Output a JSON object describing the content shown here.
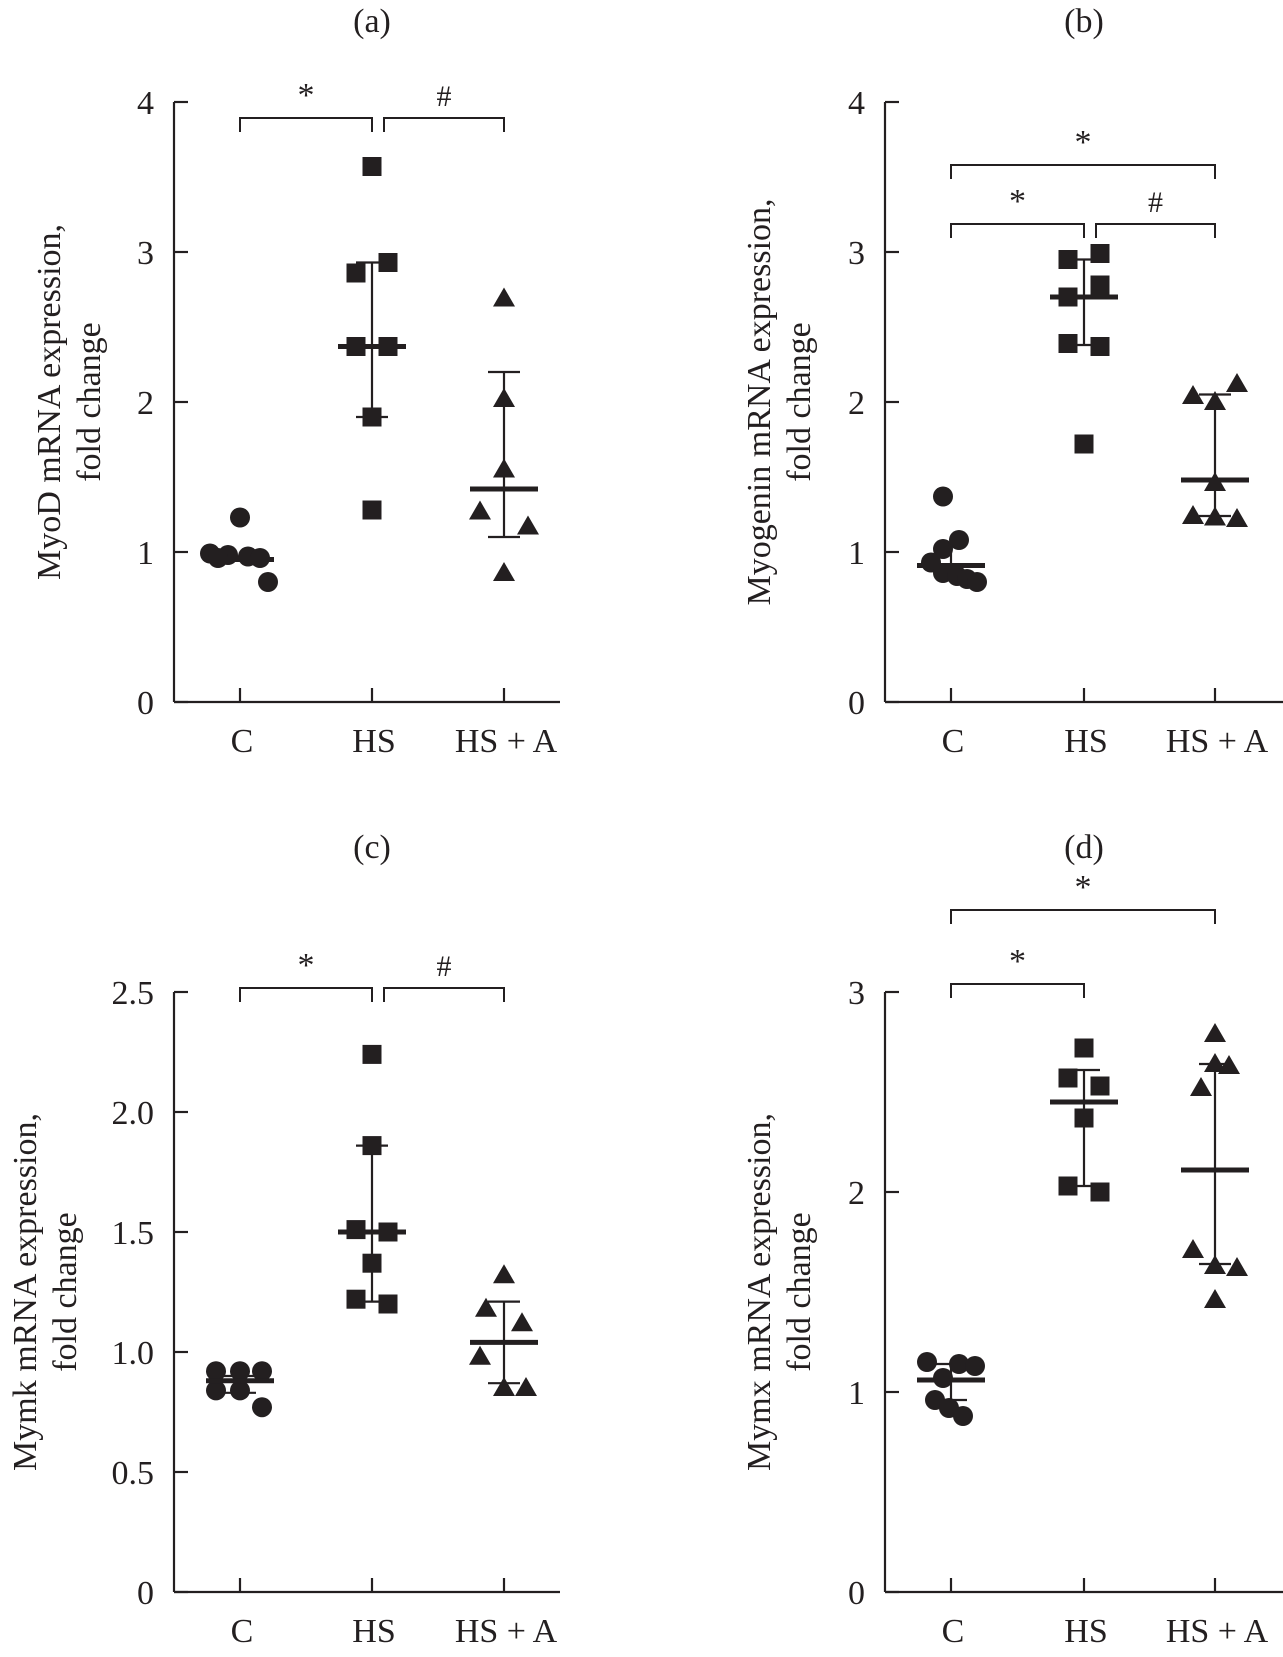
{
  "chart_data": [
    {
      "type": "scatter",
      "panel": "(a)",
      "title": "(a)",
      "xlabel": "",
      "ylabel_line1": "MyoD mRNA expression,",
      "ylabel_line2": "fold change",
      "categories": [
        "C",
        "HS",
        "HS + A"
      ],
      "ylim": [
        0,
        4
      ],
      "yticks": [
        0,
        1,
        2,
        3,
        4
      ],
      "ytick_labels": [
        "0",
        "1",
        "2",
        "3",
        "4"
      ],
      "grid": false,
      "series": [
        {
          "name": "C",
          "marker": "circle",
          "values": [
            1.23,
            0.99,
            0.98,
            0.97,
            0.96,
            0.96,
            0.8
          ],
          "mean": 0.95,
          "whisker": [
            0.97,
            0.95
          ]
        },
        {
          "name": "HS",
          "marker": "square",
          "values": [
            3.57,
            2.93,
            2.86,
            2.37,
            2.37,
            1.9,
            1.28
          ],
          "mean": 2.37,
          "whisker": [
            2.93,
            1.9
          ]
        },
        {
          "name": "HS + A",
          "marker": "triangle",
          "values": [
            2.69,
            2.02,
            1.55,
            1.27,
            1.17,
            0.86
          ],
          "mean": 1.42,
          "whisker": [
            2.2,
            1.1
          ]
        }
      ],
      "significance": [
        {
          "from": "C",
          "to": "HS",
          "label": "*",
          "level": 1
        },
        {
          "from": "HS",
          "to": "HS + A",
          "label": "#",
          "level": 1
        }
      ]
    },
    {
      "type": "scatter",
      "panel": "(b)",
      "title": "(b)",
      "xlabel": "",
      "ylabel_line1": "Myogenin mRNA expression,",
      "ylabel_line2": "fold change",
      "categories": [
        "C",
        "HS",
        "HS + A"
      ],
      "ylim": [
        0,
        4
      ],
      "yticks": [
        0,
        1,
        2,
        3,
        4
      ],
      "ytick_labels": [
        "0",
        "1",
        "2",
        "3",
        "4"
      ],
      "grid": false,
      "series": [
        {
          "name": "C",
          "marker": "circle",
          "values": [
            1.37,
            1.08,
            1.02,
            0.93,
            0.86,
            0.84,
            0.82,
            0.8
          ],
          "mean": 0.91,
          "whisker": [
            1.05,
            0.86
          ]
        },
        {
          "name": "HS",
          "marker": "square",
          "values": [
            2.99,
            2.95,
            2.78,
            2.7,
            2.39,
            2.37,
            1.72
          ],
          "mean": 2.7,
          "whisker": [
            2.95,
            2.38
          ]
        },
        {
          "name": "HS + A",
          "marker": "triangle",
          "values": [
            2.12,
            2.04,
            2.0,
            1.46,
            1.24,
            1.23,
            1.22
          ],
          "mean": 1.48,
          "whisker": [
            2.05,
            1.24
          ]
        }
      ],
      "significance": [
        {
          "from": "C",
          "to": "HS + A",
          "label": "*",
          "level": 2
        },
        {
          "from": "C",
          "to": "HS",
          "label": "*",
          "level": 1
        },
        {
          "from": "HS",
          "to": "HS + A",
          "label": "#",
          "level": 1
        }
      ]
    },
    {
      "type": "scatter",
      "panel": "(c)",
      "title": "(c)",
      "xlabel": "",
      "ylabel_line1": "Mymk mRNA expression,",
      "ylabel_line2": "fold change",
      "categories": [
        "C",
        "HS",
        "HS + A"
      ],
      "ylim": [
        0,
        2.5
      ],
      "yticks": [
        0,
        0.5,
        1.0,
        1.5,
        2.0,
        2.5
      ],
      "ytick_labels": [
        "0",
        "0.5",
        "1.0",
        "1.5",
        "2.0",
        "2.5"
      ],
      "grid": false,
      "series": [
        {
          "name": "C",
          "marker": "circle",
          "values": [
            0.92,
            0.92,
            0.92,
            0.84,
            0.84,
            0.77
          ],
          "mean": 0.88,
          "whisker": [
            0.9,
            0.83
          ]
        },
        {
          "name": "HS",
          "marker": "square",
          "values": [
            2.24,
            1.86,
            1.51,
            1.5,
            1.37,
            1.22,
            1.2
          ],
          "mean": 1.5,
          "whisker": [
            1.86,
            1.21
          ]
        },
        {
          "name": "HS + A",
          "marker": "triangle",
          "values": [
            1.32,
            1.18,
            1.12,
            0.98,
            0.85,
            0.85
          ],
          "mean": 1.04,
          "whisker": [
            1.21,
            0.87
          ]
        }
      ],
      "significance": [
        {
          "from": "C",
          "to": "HS",
          "label": "*",
          "level": 1
        },
        {
          "from": "HS",
          "to": "HS + A",
          "label": "#",
          "level": 1
        }
      ]
    },
    {
      "type": "scatter",
      "panel": "(d)",
      "title": "(d)",
      "xlabel": "",
      "ylabel_line1": "Mymx mRNA expression,",
      "ylabel_line2": "fold change",
      "categories": [
        "C",
        "HS",
        "HS + A"
      ],
      "ylim": [
        0,
        3
      ],
      "yticks": [
        0,
        1,
        2,
        3
      ],
      "ytick_labels": [
        "0",
        "1",
        "2",
        "3"
      ],
      "grid": false,
      "series": [
        {
          "name": "C",
          "marker": "circle",
          "values": [
            1.15,
            1.14,
            1.13,
            1.07,
            0.96,
            0.92,
            0.88
          ],
          "mean": 1.06,
          "whisker": [
            1.14,
            0.96
          ]
        },
        {
          "name": "HS",
          "marker": "square",
          "values": [
            2.72,
            2.57,
            2.53,
            2.37,
            2.03,
            2.0
          ],
          "mean": 2.45,
          "whisker": [
            2.61,
            2.03
          ]
        },
        {
          "name": "HS + A",
          "marker": "triangle",
          "values": [
            2.79,
            2.64,
            2.63,
            2.52,
            1.71,
            1.63,
            1.62,
            1.46
          ],
          "mean": 2.11,
          "whisker": [
            2.64,
            1.64
          ]
        }
      ],
      "significance": [
        {
          "from": "C",
          "to": "HS + A",
          "label": "*",
          "level": 2
        },
        {
          "from": "C",
          "to": "HS",
          "label": "*",
          "level": 1
        }
      ]
    }
  ]
}
